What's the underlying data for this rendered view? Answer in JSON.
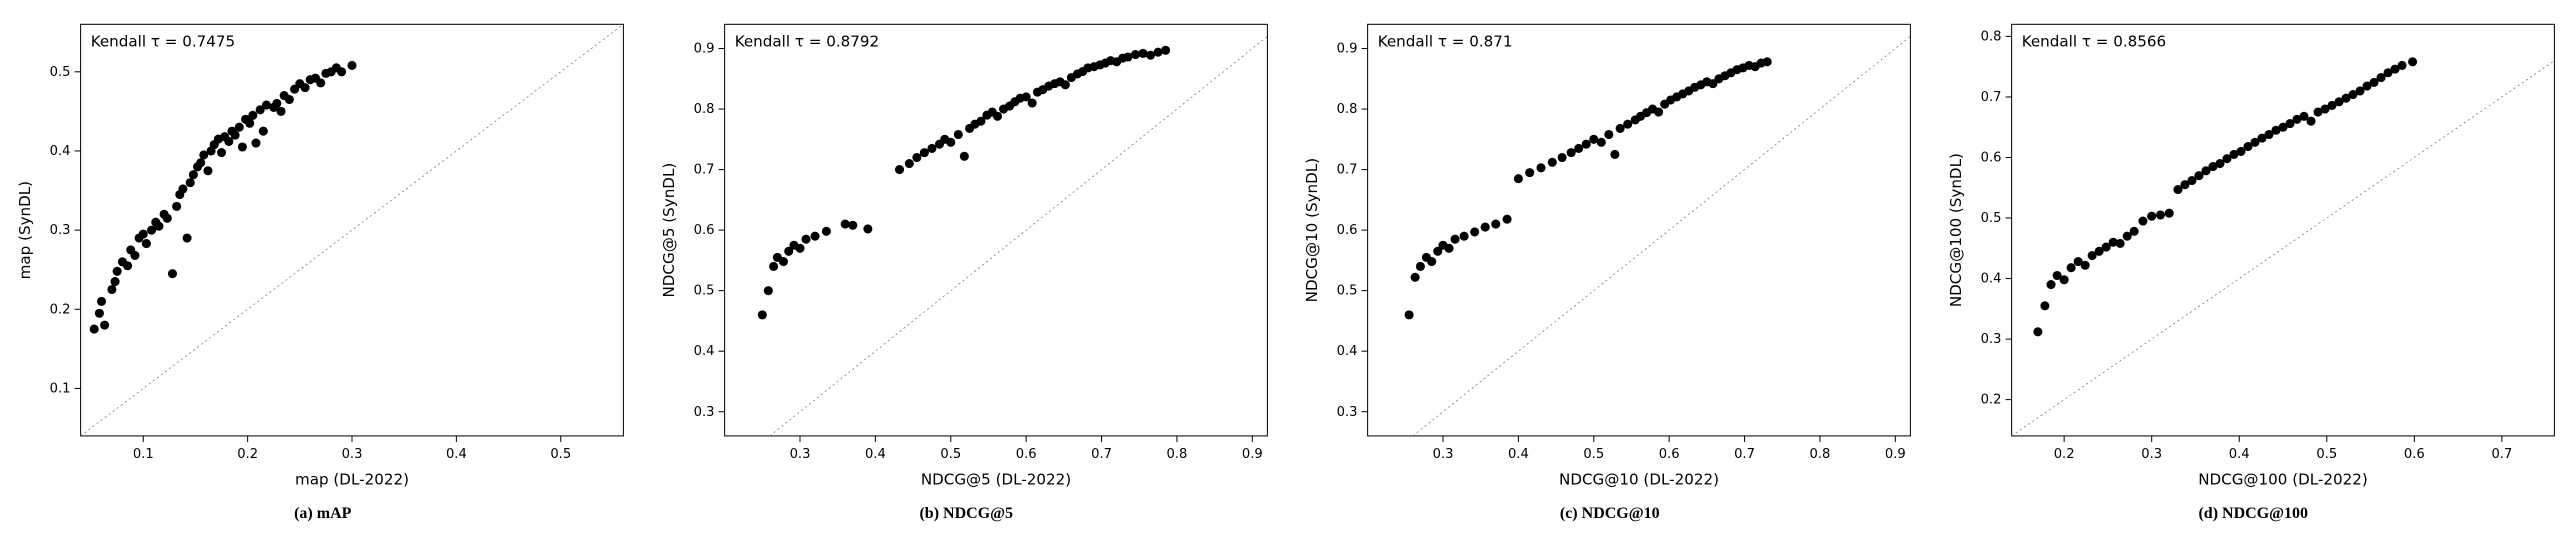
{
  "figure": {
    "background_color": "#ffffff",
    "point_color": "#000000",
    "point_radius": 4.5,
    "axis_color": "#000000",
    "diag_color": "#666666",
    "diag_dash": "2 3",
    "tick_fontsize": 13,
    "label_fontsize": 15,
    "annot_fontsize": 15,
    "caption_fontsize": 16
  },
  "panels": [
    {
      "id": "a",
      "caption": "(a) mAP",
      "xlabel": "map (DL-2022)",
      "ylabel": "map (SynDL)",
      "annot": "Kendall τ = 0.7475",
      "xlim": [
        0.04,
        0.56
      ],
      "ylim": [
        0.04,
        0.56
      ],
      "xticks": [
        0.1,
        0.2,
        0.3,
        0.4,
        0.5
      ],
      "yticks": [
        0.1,
        0.2,
        0.3,
        0.4,
        0.5
      ],
      "points": [
        [
          0.053,
          0.175
        ],
        [
          0.058,
          0.195
        ],
        [
          0.06,
          0.21
        ],
        [
          0.063,
          0.18
        ],
        [
          0.07,
          0.225
        ],
        [
          0.073,
          0.235
        ],
        [
          0.075,
          0.248
        ],
        [
          0.08,
          0.26
        ],
        [
          0.085,
          0.255
        ],
        [
          0.088,
          0.275
        ],
        [
          0.092,
          0.268
        ],
        [
          0.096,
          0.29
        ],
        [
          0.1,
          0.295
        ],
        [
          0.103,
          0.283
        ],
        [
          0.108,
          0.3
        ],
        [
          0.112,
          0.31
        ],
        [
          0.115,
          0.305
        ],
        [
          0.12,
          0.32
        ],
        [
          0.123,
          0.315
        ],
        [
          0.128,
          0.245
        ],
        [
          0.132,
          0.33
        ],
        [
          0.135,
          0.345
        ],
        [
          0.138,
          0.352
        ],
        [
          0.142,
          0.29
        ],
        [
          0.145,
          0.36
        ],
        [
          0.148,
          0.37
        ],
        [
          0.152,
          0.38
        ],
        [
          0.155,
          0.385
        ],
        [
          0.158,
          0.395
        ],
        [
          0.162,
          0.375
        ],
        [
          0.165,
          0.4
        ],
        [
          0.168,
          0.408
        ],
        [
          0.172,
          0.415
        ],
        [
          0.175,
          0.398
        ],
        [
          0.178,
          0.418
        ],
        [
          0.182,
          0.412
        ],
        [
          0.185,
          0.425
        ],
        [
          0.188,
          0.42
        ],
        [
          0.192,
          0.43
        ],
        [
          0.195,
          0.405
        ],
        [
          0.198,
          0.44
        ],
        [
          0.202,
          0.435
        ],
        [
          0.205,
          0.445
        ],
        [
          0.208,
          0.41
        ],
        [
          0.212,
          0.452
        ],
        [
          0.215,
          0.425
        ],
        [
          0.218,
          0.458
        ],
        [
          0.225,
          0.455
        ],
        [
          0.228,
          0.46
        ],
        [
          0.232,
          0.45
        ],
        [
          0.235,
          0.47
        ],
        [
          0.24,
          0.465
        ],
        [
          0.245,
          0.478
        ],
        [
          0.25,
          0.485
        ],
        [
          0.255,
          0.48
        ],
        [
          0.26,
          0.49
        ],
        [
          0.265,
          0.492
        ],
        [
          0.27,
          0.486
        ],
        [
          0.275,
          0.498
        ],
        [
          0.28,
          0.5
        ],
        [
          0.285,
          0.505
        ],
        [
          0.29,
          0.5
        ],
        [
          0.3,
          0.508
        ]
      ]
    },
    {
      "id": "b",
      "caption": "(b) NDCG@5",
      "xlabel": "NDCG@5 (DL-2022)",
      "ylabel": "NDCG@5 (SynDL)",
      "annot": "Kendall τ = 0.8792",
      "xlim": [
        0.2,
        0.92
      ],
      "ylim": [
        0.26,
        0.94
      ],
      "xticks": [
        0.3,
        0.4,
        0.5,
        0.6,
        0.7,
        0.8,
        0.9
      ],
      "yticks": [
        0.3,
        0.4,
        0.5,
        0.6,
        0.7,
        0.8,
        0.9
      ],
      "points": [
        [
          0.25,
          0.46
        ],
        [
          0.258,
          0.5
        ],
        [
          0.265,
          0.54
        ],
        [
          0.27,
          0.555
        ],
        [
          0.278,
          0.548
        ],
        [
          0.285,
          0.565
        ],
        [
          0.292,
          0.575
        ],
        [
          0.3,
          0.57
        ],
        [
          0.308,
          0.585
        ],
        [
          0.32,
          0.59
        ],
        [
          0.335,
          0.598
        ],
        [
          0.36,
          0.61
        ],
        [
          0.37,
          0.608
        ],
        [
          0.39,
          0.602
        ],
        [
          0.432,
          0.7
        ],
        [
          0.445,
          0.71
        ],
        [
          0.455,
          0.72
        ],
        [
          0.465,
          0.728
        ],
        [
          0.475,
          0.735
        ],
        [
          0.485,
          0.742
        ],
        [
          0.492,
          0.75
        ],
        [
          0.5,
          0.745
        ],
        [
          0.51,
          0.758
        ],
        [
          0.518,
          0.722
        ],
        [
          0.525,
          0.768
        ],
        [
          0.532,
          0.775
        ],
        [
          0.54,
          0.78
        ],
        [
          0.548,
          0.79
        ],
        [
          0.555,
          0.795
        ],
        [
          0.562,
          0.788
        ],
        [
          0.57,
          0.8
        ],
        [
          0.578,
          0.805
        ],
        [
          0.585,
          0.812
        ],
        [
          0.592,
          0.818
        ],
        [
          0.6,
          0.82
        ],
        [
          0.608,
          0.81
        ],
        [
          0.615,
          0.828
        ],
        [
          0.622,
          0.832
        ],
        [
          0.63,
          0.838
        ],
        [
          0.638,
          0.842
        ],
        [
          0.645,
          0.845
        ],
        [
          0.652,
          0.84
        ],
        [
          0.66,
          0.852
        ],
        [
          0.668,
          0.858
        ],
        [
          0.675,
          0.862
        ],
        [
          0.682,
          0.868
        ],
        [
          0.69,
          0.87
        ],
        [
          0.698,
          0.873
        ],
        [
          0.705,
          0.876
        ],
        [
          0.712,
          0.88
        ],
        [
          0.72,
          0.878
        ],
        [
          0.728,
          0.884
        ],
        [
          0.735,
          0.886
        ],
        [
          0.745,
          0.89
        ],
        [
          0.755,
          0.892
        ],
        [
          0.765,
          0.889
        ],
        [
          0.775,
          0.894
        ],
        [
          0.785,
          0.897
        ]
      ]
    },
    {
      "id": "c",
      "caption": "(c) NDCG@10",
      "xlabel": "NDCG@10 (DL-2022)",
      "ylabel": "NDCG@10 (SynDL)",
      "annot": "Kendall τ = 0.871",
      "xlim": [
        0.2,
        0.92
      ],
      "ylim": [
        0.26,
        0.94
      ],
      "xticks": [
        0.3,
        0.4,
        0.5,
        0.6,
        0.7,
        0.8,
        0.9
      ],
      "yticks": [
        0.3,
        0.4,
        0.5,
        0.6,
        0.7,
        0.8,
        0.9
      ],
      "points": [
        [
          0.255,
          0.46
        ],
        [
          0.263,
          0.522
        ],
        [
          0.27,
          0.54
        ],
        [
          0.278,
          0.555
        ],
        [
          0.285,
          0.548
        ],
        [
          0.293,
          0.565
        ],
        [
          0.3,
          0.575
        ],
        [
          0.308,
          0.57
        ],
        [
          0.316,
          0.585
        ],
        [
          0.328,
          0.59
        ],
        [
          0.342,
          0.597
        ],
        [
          0.356,
          0.605
        ],
        [
          0.37,
          0.61
        ],
        [
          0.385,
          0.618
        ],
        [
          0.4,
          0.685
        ],
        [
          0.415,
          0.695
        ],
        [
          0.43,
          0.703
        ],
        [
          0.445,
          0.712
        ],
        [
          0.458,
          0.72
        ],
        [
          0.47,
          0.728
        ],
        [
          0.48,
          0.735
        ],
        [
          0.49,
          0.742
        ],
        [
          0.5,
          0.75
        ],
        [
          0.51,
          0.745
        ],
        [
          0.52,
          0.758
        ],
        [
          0.528,
          0.725
        ],
        [
          0.535,
          0.768
        ],
        [
          0.545,
          0.775
        ],
        [
          0.555,
          0.782
        ],
        [
          0.562,
          0.788
        ],
        [
          0.57,
          0.794
        ],
        [
          0.578,
          0.8
        ],
        [
          0.586,
          0.795
        ],
        [
          0.594,
          0.808
        ],
        [
          0.602,
          0.815
        ],
        [
          0.61,
          0.82
        ],
        [
          0.618,
          0.825
        ],
        [
          0.626,
          0.83
        ],
        [
          0.634,
          0.836
        ],
        [
          0.642,
          0.84
        ],
        [
          0.65,
          0.845
        ],
        [
          0.658,
          0.842
        ],
        [
          0.666,
          0.85
        ],
        [
          0.674,
          0.855
        ],
        [
          0.682,
          0.86
        ],
        [
          0.69,
          0.865
        ],
        [
          0.698,
          0.868
        ],
        [
          0.706,
          0.872
        ],
        [
          0.714,
          0.87
        ],
        [
          0.722,
          0.876
        ],
        [
          0.73,
          0.878
        ]
      ]
    },
    {
      "id": "d",
      "caption": "(d) NDCG@100",
      "xlabel": "NDCG@100 (DL-2022)",
      "ylabel": "NDCG@100 (SynDL)",
      "annot": "Kendall τ = 0.8566",
      "xlim": [
        0.14,
        0.76
      ],
      "ylim": [
        0.14,
        0.82
      ],
      "xticks": [
        0.2,
        0.3,
        0.4,
        0.5,
        0.6,
        0.7
      ],
      "yticks": [
        0.2,
        0.3,
        0.4,
        0.5,
        0.6,
        0.7,
        0.8
      ],
      "points": [
        [
          0.17,
          0.312
        ],
        [
          0.178,
          0.355
        ],
        [
          0.185,
          0.39
        ],
        [
          0.192,
          0.405
        ],
        [
          0.2,
          0.398
        ],
        [
          0.208,
          0.418
        ],
        [
          0.216,
          0.428
        ],
        [
          0.224,
          0.422
        ],
        [
          0.232,
          0.438
        ],
        [
          0.24,
          0.445
        ],
        [
          0.248,
          0.452
        ],
        [
          0.256,
          0.46
        ],
        [
          0.264,
          0.458
        ],
        [
          0.272,
          0.47
        ],
        [
          0.28,
          0.478
        ],
        [
          0.29,
          0.495
        ],
        [
          0.3,
          0.503
        ],
        [
          0.31,
          0.505
        ],
        [
          0.32,
          0.508
        ],
        [
          0.33,
          0.547
        ],
        [
          0.338,
          0.555
        ],
        [
          0.346,
          0.562
        ],
        [
          0.354,
          0.57
        ],
        [
          0.362,
          0.578
        ],
        [
          0.37,
          0.585
        ],
        [
          0.378,
          0.59
        ],
        [
          0.386,
          0.598
        ],
        [
          0.394,
          0.605
        ],
        [
          0.402,
          0.61
        ],
        [
          0.41,
          0.618
        ],
        [
          0.418,
          0.625
        ],
        [
          0.426,
          0.632
        ],
        [
          0.434,
          0.638
        ],
        [
          0.442,
          0.645
        ],
        [
          0.45,
          0.65
        ],
        [
          0.458,
          0.656
        ],
        [
          0.466,
          0.663
        ],
        [
          0.474,
          0.668
        ],
        [
          0.482,
          0.66
        ],
        [
          0.49,
          0.675
        ],
        [
          0.498,
          0.68
        ],
        [
          0.506,
          0.686
        ],
        [
          0.514,
          0.692
        ],
        [
          0.522,
          0.698
        ],
        [
          0.53,
          0.704
        ],
        [
          0.538,
          0.71
        ],
        [
          0.546,
          0.718
        ],
        [
          0.554,
          0.724
        ],
        [
          0.562,
          0.732
        ],
        [
          0.57,
          0.74
        ],
        [
          0.578,
          0.746
        ],
        [
          0.586,
          0.752
        ],
        [
          0.598,
          0.758
        ]
      ]
    }
  ]
}
